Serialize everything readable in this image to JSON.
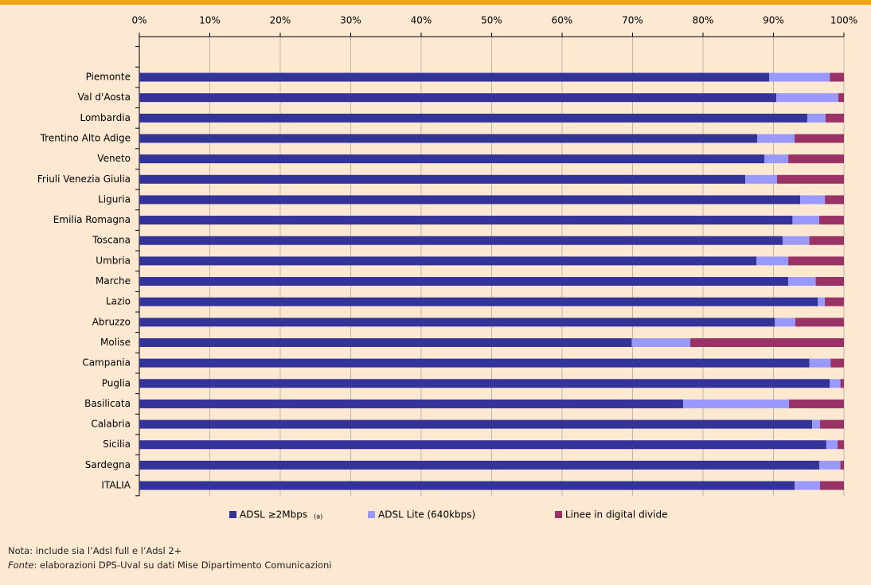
{
  "chart_data": {
    "type": "stacked_barh",
    "categories": [
      "Piemonte",
      "Val d'Aosta",
      "Lombardia",
      "Trentino Alto Adige",
      "Veneto",
      "Friuli Venezia Giulia",
      "Liguria",
      "Emilia Romagna",
      "Toscana",
      "Umbria",
      "Marche",
      "Lazio",
      "Abruzzo",
      "Molise",
      "Campania",
      "Puglia",
      "Basilicata",
      "Calabria",
      "Sicilia",
      "Sardegna",
      "ITALIA"
    ],
    "series": [
      {
        "name": "ADSL ≥2Mbps",
        "note": "(a)",
        "color": "#333399",
        "values": [
          89.4,
          90.4,
          94.8,
          87.7,
          88.7,
          86.0,
          93.8,
          92.7,
          91.3,
          87.6,
          92.1,
          96.3,
          90.2,
          69.9,
          95.1,
          98.0,
          77.2,
          95.5,
          97.5,
          96.5,
          93.0
        ]
      },
      {
        "name": "ADSL Lite (640kbps)",
        "color": "#9999ff",
        "values": [
          8.6,
          8.8,
          2.6,
          5.3,
          3.4,
          4.5,
          3.5,
          3.8,
          3.8,
          4.5,
          3.9,
          1.0,
          2.9,
          8.3,
          3.0,
          1.5,
          15.0,
          1.1,
          1.6,
          3.0,
          3.6
        ]
      },
      {
        "name": "Linee in digital divide",
        "color": "#993366",
        "values": [
          2.0,
          0.8,
          2.6,
          7.0,
          7.9,
          9.5,
          2.7,
          3.5,
          4.9,
          7.9,
          4.0,
          2.7,
          6.9,
          21.8,
          1.9,
          0.5,
          7.8,
          3.4,
          0.9,
          0.5,
          3.4
        ]
      }
    ],
    "xlim": [
      0,
      100
    ],
    "xticks": [
      {
        "value": 0,
        "label": "0%"
      },
      {
        "value": 10,
        "label": "10%"
      },
      {
        "value": 20,
        "label": "20%"
      },
      {
        "value": 30,
        "label": "30%"
      },
      {
        "value": 40,
        "label": "40%"
      },
      {
        "value": 50,
        "label": "50%"
      },
      {
        "value": 60,
        "label": "60%"
      },
      {
        "value": 70,
        "label": "70%"
      },
      {
        "value": 80,
        "label": "80%"
      },
      {
        "value": 90,
        "label": "90%"
      },
      {
        "value": 100,
        "label": "100%"
      }
    ],
    "grid": true,
    "notes": {
      "nota": "Nota:  include sia l’Adsl full e l’Adsl 2+",
      "fonte_label": "Fonte",
      "fonte_text": ": elaborazioni DPS-Uval su dati Mise Dipartimento Comunicazioni"
    }
  }
}
